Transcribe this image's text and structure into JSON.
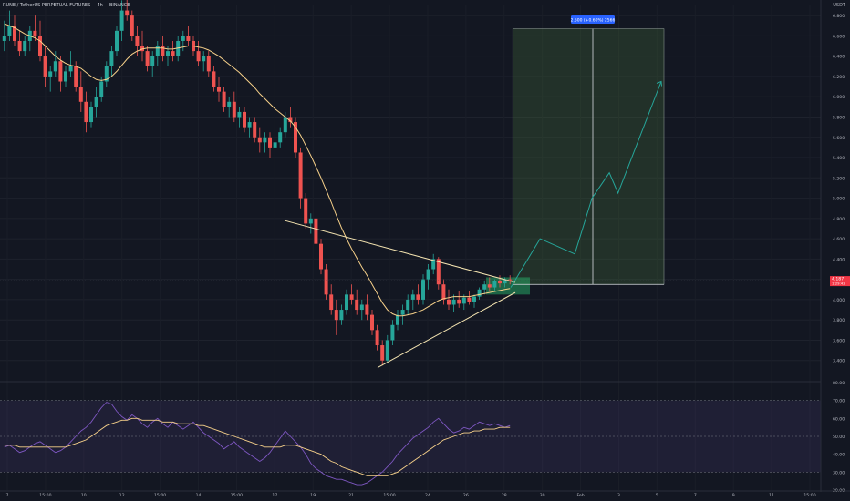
{
  "header": {
    "symbol": "RUNE / TetherUS PERPETUAL FUTURES",
    "interval": "4h",
    "exchange": "BINANCE",
    "sep": "·"
  },
  "currency": "USDT",
  "colors": {
    "up": "#26a69a",
    "down": "#ef5350",
    "ma": "#f7d18a",
    "trendline": "#f3e3b0",
    "projection": "#26a69a",
    "target_zone": "rgba(76,120,60,0.28)",
    "entry_zone": "rgba(38,166,100,0.55)",
    "rsi_line": "#7e57c2",
    "rsi_ma": "#f7d18a",
    "rsi_band": "rgba(126,87,194,0.12)",
    "price_tag": "#f23645"
  },
  "price_label": {
    "value": "4.187",
    "sub": "1:29:42"
  },
  "measure_label": "2.500 (+0.60%) 2566",
  "chart_data": {
    "type": "candlestick",
    "ylim": [
      3.2,
      6.9
    ],
    "y_ticks": [
      "6.800",
      "6.600",
      "6.400",
      "6.200",
      "6.000",
      "5.800",
      "5.600",
      "5.400",
      "5.200",
      "5.000",
      "4.800",
      "4.600",
      "4.400",
      "4.200",
      "4.000",
      "3.800",
      "3.600",
      "3.400"
    ],
    "y_tick_values": [
      6.8,
      6.6,
      6.4,
      6.2,
      6.0,
      5.8,
      5.6,
      5.4,
      5.2,
      5.0,
      4.8,
      4.6,
      4.4,
      4.2,
      4.0,
      3.8,
      3.6,
      3.4
    ],
    "x_ticks": [
      "7",
      "15:00",
      "10",
      "12",
      "15:00",
      "14",
      "15:00",
      "17",
      "19",
      "21",
      "15:00",
      "24",
      "26",
      "28",
      "30",
      "Feb",
      "3",
      "5",
      "7",
      "9",
      "11",
      "15:00"
    ],
    "candles": [
      [
        6.55,
        6.75,
        6.45,
        6.6
      ],
      [
        6.6,
        6.85,
        6.55,
        6.7
      ],
      [
        6.7,
        6.8,
        6.5,
        6.55
      ],
      [
        6.55,
        6.65,
        6.4,
        6.45
      ],
      [
        6.45,
        6.6,
        6.4,
        6.55
      ],
      [
        6.55,
        6.7,
        6.45,
        6.65
      ],
      [
        6.65,
        6.8,
        6.55,
        6.6
      ],
      [
        6.6,
        6.75,
        6.35,
        6.4
      ],
      [
        6.4,
        6.5,
        6.1,
        6.2
      ],
      [
        6.2,
        6.3,
        6.05,
        6.25
      ],
      [
        6.25,
        6.45,
        6.2,
        6.35
      ],
      [
        6.35,
        6.4,
        6.05,
        6.15
      ],
      [
        6.15,
        6.3,
        6.1,
        6.25
      ],
      [
        6.25,
        6.45,
        6.2,
        6.3
      ],
      [
        6.3,
        6.35,
        6.05,
        6.1
      ],
      [
        6.1,
        6.25,
        5.85,
        5.95
      ],
      [
        5.95,
        6.05,
        5.65,
        5.75
      ],
      [
        5.75,
        5.95,
        5.7,
        5.9
      ],
      [
        5.9,
        6.1,
        5.8,
        6.0
      ],
      [
        6.0,
        6.2,
        5.95,
        6.15
      ],
      [
        6.15,
        6.35,
        6.1,
        6.3
      ],
      [
        6.3,
        6.5,
        6.2,
        6.45
      ],
      [
        6.45,
        6.7,
        6.4,
        6.65
      ],
      [
        6.65,
        6.95,
        6.55,
        6.85
      ],
      [
        6.85,
        7.0,
        6.75,
        6.8
      ],
      [
        6.8,
        6.85,
        6.55,
        6.6
      ],
      [
        6.6,
        6.7,
        6.4,
        6.5
      ],
      [
        6.5,
        6.65,
        6.35,
        6.45
      ],
      [
        6.45,
        6.5,
        6.25,
        6.3
      ],
      [
        6.3,
        6.45,
        6.2,
        6.4
      ],
      [
        6.4,
        6.55,
        6.3,
        6.5
      ],
      [
        6.5,
        6.6,
        6.35,
        6.4
      ],
      [
        6.4,
        6.5,
        6.3,
        6.45
      ],
      [
        6.45,
        6.55,
        6.35,
        6.4
      ],
      [
        6.4,
        6.6,
        6.35,
        6.55
      ],
      [
        6.55,
        6.65,
        6.45,
        6.6
      ],
      [
        6.6,
        6.7,
        6.5,
        6.55
      ],
      [
        6.55,
        6.6,
        6.4,
        6.45
      ],
      [
        6.45,
        6.55,
        6.3,
        6.35
      ],
      [
        6.35,
        6.45,
        6.25,
        6.4
      ],
      [
        6.4,
        6.45,
        6.2,
        6.25
      ],
      [
        6.25,
        6.3,
        6.05,
        6.1
      ],
      [
        6.1,
        6.2,
        5.95,
        6.05
      ],
      [
        6.05,
        6.1,
        5.85,
        5.9
      ],
      [
        5.9,
        6.0,
        5.8,
        5.95
      ],
      [
        5.95,
        6.05,
        5.75,
        5.8
      ],
      [
        5.8,
        5.9,
        5.7,
        5.85
      ],
      [
        5.85,
        5.9,
        5.65,
        5.7
      ],
      [
        5.7,
        5.8,
        5.6,
        5.75
      ],
      [
        5.75,
        5.8,
        5.55,
        5.6
      ],
      [
        5.6,
        5.7,
        5.45,
        5.55
      ],
      [
        5.55,
        5.65,
        5.45,
        5.6
      ],
      [
        5.6,
        5.65,
        5.4,
        5.5
      ],
      [
        5.5,
        5.6,
        5.4,
        5.55
      ],
      [
        5.55,
        5.7,
        5.5,
        5.65
      ],
      [
        5.65,
        5.85,
        5.6,
        5.8
      ],
      [
        5.8,
        5.9,
        5.7,
        5.75
      ],
      [
        5.75,
        5.8,
        5.4,
        5.45
      ],
      [
        5.45,
        5.5,
        4.9,
        5.0
      ],
      [
        5.0,
        5.05,
        4.7,
        4.75
      ],
      [
        4.75,
        4.85,
        4.65,
        4.8
      ],
      [
        4.8,
        4.85,
        4.5,
        4.55
      ],
      [
        4.55,
        4.6,
        4.25,
        4.3
      ],
      [
        4.3,
        4.35,
        4.0,
        4.05
      ],
      [
        4.05,
        4.15,
        3.85,
        3.9
      ],
      [
        3.9,
        4.0,
        3.65,
        3.8
      ],
      [
        3.8,
        3.95,
        3.75,
        3.9
      ],
      [
        3.9,
        4.1,
        3.85,
        4.05
      ],
      [
        4.05,
        4.15,
        3.95,
        4.0
      ],
      [
        4.0,
        4.1,
        3.85,
        3.9
      ],
      [
        3.9,
        4.0,
        3.8,
        3.95
      ],
      [
        3.95,
        4.05,
        3.8,
        3.85
      ],
      [
        3.85,
        3.9,
        3.65,
        3.7
      ],
      [
        3.7,
        3.75,
        3.5,
        3.55
      ],
      [
        3.55,
        3.6,
        3.35,
        3.4
      ],
      [
        3.4,
        3.65,
        3.38,
        3.6
      ],
      [
        3.6,
        3.8,
        3.55,
        3.75
      ],
      [
        3.75,
        3.9,
        3.7,
        3.85
      ],
      [
        3.85,
        3.95,
        3.75,
        3.9
      ],
      [
        3.9,
        4.05,
        3.85,
        4.0
      ],
      [
        4.0,
        4.1,
        3.9,
        4.05
      ],
      [
        4.05,
        4.15,
        3.95,
        4.0
      ],
      [
        4.0,
        4.25,
        3.95,
        4.2
      ],
      [
        4.2,
        4.35,
        4.1,
        4.3
      ],
      [
        4.3,
        4.45,
        4.25,
        4.4
      ],
      [
        4.4,
        4.42,
        4.1,
        4.15
      ],
      [
        4.15,
        4.2,
        3.95,
        4.0
      ],
      [
        4.0,
        4.1,
        3.9,
        3.95
      ],
      [
        3.95,
        4.05,
        3.88,
        4.0
      ],
      [
        4.0,
        4.08,
        3.92,
        3.96
      ],
      [
        3.96,
        4.05,
        3.9,
        4.02
      ],
      [
        4.02,
        4.08,
        3.95,
        3.98
      ],
      [
        3.98,
        4.05,
        3.92,
        4.03
      ],
      [
        4.03,
        4.12,
        4.0,
        4.1
      ],
      [
        4.1,
        4.18,
        4.05,
        4.15
      ],
      [
        4.15,
        4.22,
        4.08,
        4.12
      ],
      [
        4.12,
        4.2,
        4.08,
        4.18
      ],
      [
        4.18,
        4.24,
        4.12,
        4.16
      ],
      [
        4.16,
        4.22,
        4.12,
        4.2
      ],
      [
        4.2,
        4.24,
        4.15,
        4.19
      ]
    ],
    "ma": [
      6.72,
      6.7,
      6.68,
      6.65,
      6.62,
      6.6,
      6.58,
      6.55,
      6.5,
      6.45,
      6.4,
      6.36,
      6.33,
      6.31,
      6.3,
      6.28,
      6.24,
      6.2,
      6.17,
      6.16,
      6.17,
      6.2,
      6.25,
      6.31,
      6.37,
      6.42,
      6.45,
      6.47,
      6.48,
      6.48,
      6.48,
      6.48,
      6.47,
      6.47,
      6.48,
      6.49,
      6.5,
      6.5,
      6.49,
      6.48,
      6.46,
      6.43,
      6.4,
      6.36,
      6.32,
      6.28,
      6.24,
      6.19,
      6.14,
      6.09,
      6.03,
      5.98,
      5.93,
      5.88,
      5.84,
      5.8,
      5.76,
      5.7,
      5.62,
      5.52,
      5.42,
      5.31,
      5.2,
      5.08,
      4.96,
      4.83,
      4.71,
      4.6,
      4.5,
      4.41,
      4.32,
      4.24,
      4.15,
      4.06,
      3.97,
      3.9,
      3.86,
      3.84,
      3.84,
      3.85,
      3.86,
      3.88,
      3.9,
      3.93,
      3.96,
      3.99,
      4.01,
      4.02,
      4.03,
      4.03,
      4.03,
      4.03,
      4.04,
      4.05,
      4.06,
      4.07,
      4.08,
      4.09,
      4.1,
      4.11
    ],
    "rsi_ylim": [
      20,
      80
    ],
    "rsi_ticks": [
      "80.00",
      "70.00",
      "60.00",
      "50.00",
      "40.00",
      "30.00",
      "20.00"
    ],
    "rsi_tick_values": [
      80,
      70,
      60,
      50,
      40,
      30,
      20
    ],
    "rsi_band": [
      30,
      70
    ],
    "rsi": [
      44,
      45,
      43,
      41,
      42,
      44,
      46,
      47,
      45,
      43,
      41,
      42,
      44,
      47,
      50,
      53,
      55,
      58,
      62,
      66,
      69,
      68,
      64,
      61,
      59,
      62,
      60,
      57,
      55,
      58,
      60,
      57,
      55,
      58,
      56,
      54,
      56,
      58,
      55,
      52,
      50,
      48,
      46,
      43,
      45,
      47,
      44,
      42,
      40,
      38,
      36,
      38,
      41,
      45,
      49,
      53,
      50,
      47,
      44,
      40,
      35,
      32,
      30,
      28,
      27,
      26,
      26,
      25,
      24,
      23,
      23,
      24,
      26,
      28,
      30,
      33,
      36,
      40,
      43,
      46,
      49,
      51,
      53,
      55,
      58,
      60,
      57,
      54,
      52,
      53,
      55,
      54,
      56,
      58,
      57,
      56,
      57,
      56,
      55,
      56
    ],
    "rsi_ma": [
      45,
      45,
      45,
      44,
      44,
      44,
      44,
      44,
      44,
      44,
      44,
      44,
      44,
      45,
      46,
      47,
      48,
      50,
      52,
      54,
      56,
      57,
      58,
      59,
      59,
      60,
      60,
      59,
      59,
      59,
      59,
      58,
      58,
      58,
      57,
      57,
      57,
      57,
      56,
      56,
      55,
      54,
      53,
      52,
      51,
      50,
      49,
      48,
      47,
      46,
      45,
      44,
      44,
      44,
      44,
      45,
      45,
      45,
      44,
      43,
      42,
      41,
      40,
      38,
      36,
      35,
      33,
      32,
      31,
      30,
      29,
      28,
      28,
      28,
      28,
      28,
      29,
      30,
      32,
      34,
      36,
      38,
      40,
      42,
      44,
      46,
      48,
      49,
      50,
      51,
      52,
      52,
      53,
      53,
      54,
      54,
      54,
      55,
      55,
      55
    ],
    "triangle": {
      "start_index": 57,
      "upper": [
        4.78,
        4.17
      ],
      "lower": [
        3.33,
        4.07
      ]
    },
    "target_zone": {
      "top": 6.67,
      "bottom": 4.15
    },
    "entry_zone": {
      "top": 4.22,
      "bottom": 4.05
    },
    "projection_path": [
      [
        4.08,
        4.12
      ],
      [
        4.25,
        4.6
      ],
      [
        4.45,
        4.45
      ],
      [
        4.55,
        5.0
      ],
      [
        4.65,
        5.25
      ],
      [
        4.7,
        5.05
      ],
      [
        4.95,
        6.15
      ]
    ]
  }
}
